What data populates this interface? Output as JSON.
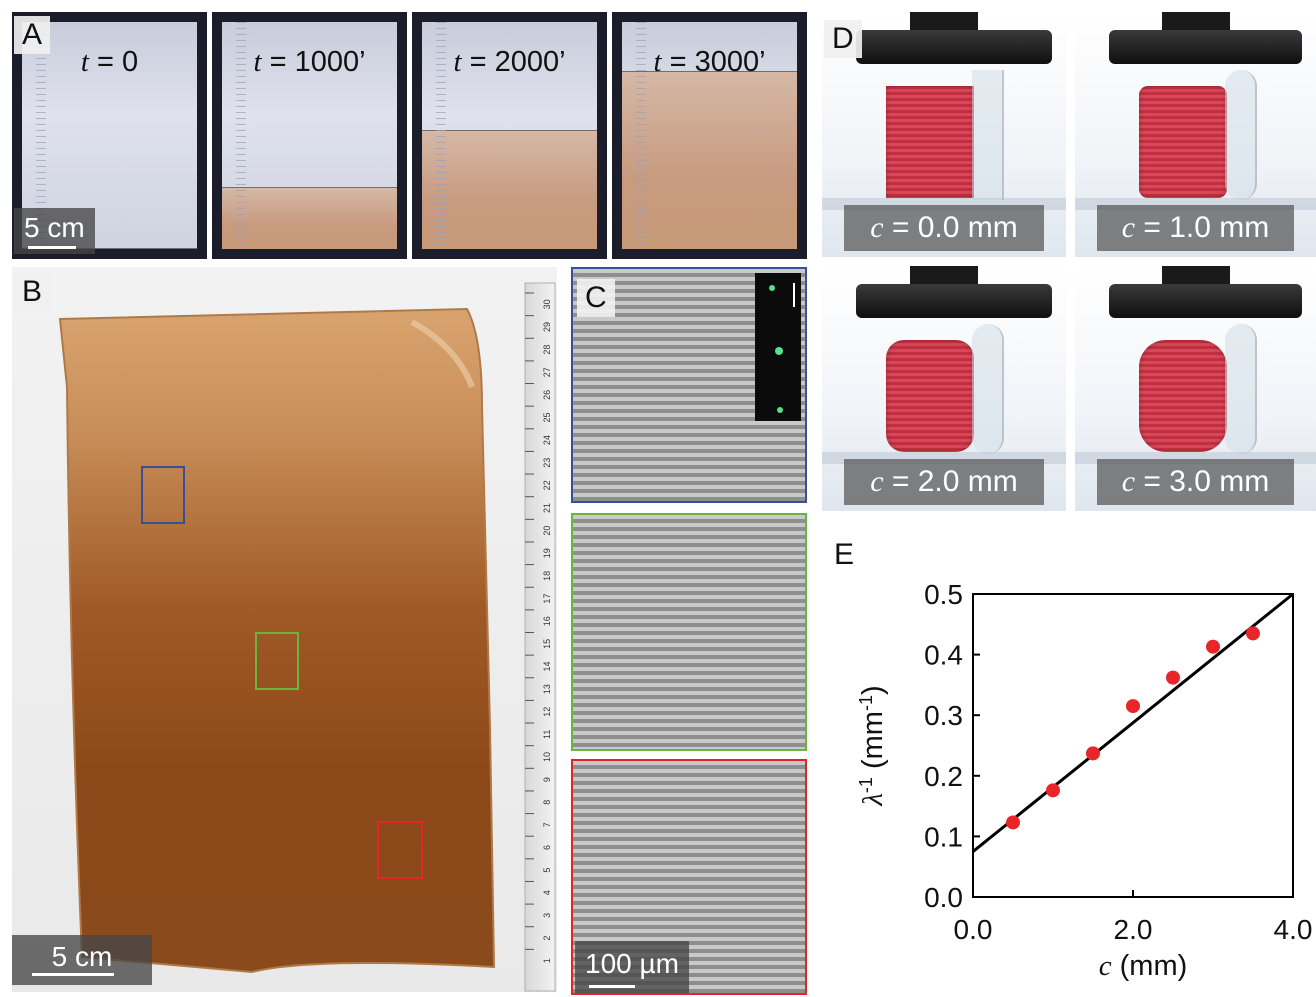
{
  "panelA": {
    "label": "A",
    "frames": [
      {
        "time_prefix": "t",
        "time_value": " = 0",
        "fill_fraction": 0.0
      },
      {
        "time_prefix": "t",
        "time_value": " = 1000’",
        "fill_fraction": 0.27
      },
      {
        "time_prefix": "t",
        "time_value": " = 2000’",
        "fill_fraction": 0.52
      },
      {
        "time_prefix": "t",
        "time_value": " = 3000’",
        "fill_fraction": 0.78
      }
    ],
    "scale": "5 cm"
  },
  "panelB": {
    "label": "B",
    "scale": "5 cm",
    "ruler_numbers": [
      "30",
      "29",
      "28",
      "27",
      "26",
      "25",
      "24",
      "23",
      "22",
      "21",
      "20",
      "19",
      "18",
      "17",
      "16",
      "15",
      "14",
      "13",
      "12",
      "11",
      "10",
      "9",
      "8",
      "7",
      "6",
      "5",
      "4",
      "3",
      "2",
      "1"
    ]
  },
  "panelC": {
    "label": "C",
    "scale": "100 µm"
  },
  "panelD": {
    "label": "D",
    "frames": [
      {
        "var": "c",
        "value": " = 0.0 mm"
      },
      {
        "var": "c",
        "value": " = 1.0 mm"
      },
      {
        "var": "c",
        "value": " = 2.0 mm"
      },
      {
        "var": "c",
        "value": " = 3.0 mm"
      }
    ]
  },
  "panelE": {
    "label": "E"
  },
  "colors": {
    "blue_box": "#3a4f9a",
    "green_box": "#6ab53d",
    "red_box": "#e0262a",
    "points": "#e8262a",
    "gel": "#8a4520"
  },
  "chart_data": {
    "type": "scatter",
    "title": "",
    "xlabel_var": "c",
    "xlabel_unit": " (mm)",
    "ylabel_var": "λ",
    "ylabel_sup": "-1",
    "ylabel_unit": " (mm",
    "ylabel_unit_sup": "-1",
    "ylabel_close": ")",
    "xlim": [
      0.0,
      4.0
    ],
    "ylim": [
      0.0,
      0.5
    ],
    "xticks": [
      "0.0",
      "2.0",
      "4.0"
    ],
    "xtick_values": [
      0.0,
      2.0,
      4.0
    ],
    "yticks": [
      "0.0",
      "0.1",
      "0.2",
      "0.3",
      "0.4",
      "0.5"
    ],
    "ytick_values": [
      0.0,
      0.1,
      0.2,
      0.3,
      0.4,
      0.5
    ],
    "series": [
      {
        "x": [
          0.5,
          1.0,
          1.5,
          2.0,
          2.5,
          3.0,
          3.5
        ],
        "y": [
          0.123,
          0.176,
          0.237,
          0.315,
          0.362,
          0.413,
          0.435
        ]
      }
    ],
    "fit_line": {
      "x": [
        0.0,
        4.0
      ],
      "y": [
        0.075,
        0.5
      ]
    },
    "grid": false,
    "legend": "none"
  }
}
